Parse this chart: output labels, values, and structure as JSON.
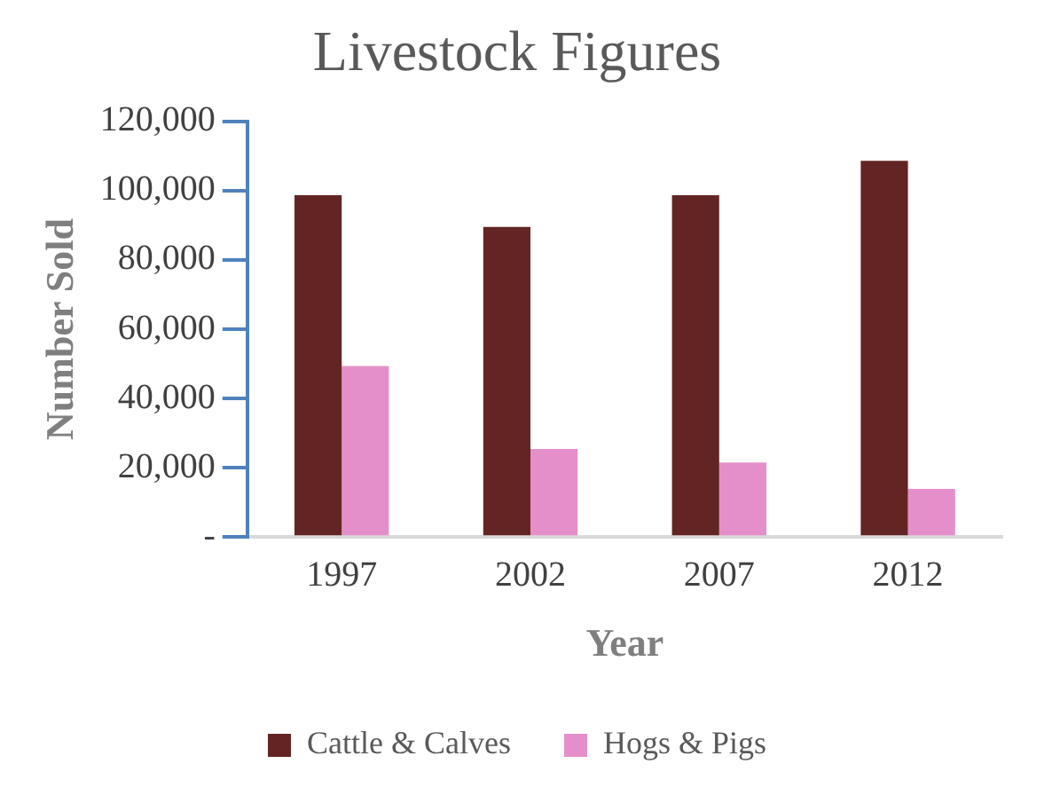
{
  "chart_data": {
    "type": "bar",
    "title": "Livestock Figures",
    "xlabel": "Year",
    "ylabel": "Number Sold",
    "categories": [
      "1997",
      "2002",
      "2007",
      "2012"
    ],
    "series": [
      {
        "name": "Cattle & Calves",
        "color": "#632523",
        "values": [
          98700,
          89500,
          98700,
          108600
        ]
      },
      {
        "name": "Hogs & Pigs",
        "color": "#e48fc9",
        "values": [
          49400,
          25400,
          21500,
          13900
        ]
      }
    ],
    "ylim": [
      0,
      120000
    ],
    "yticks": [
      {
        "value": 0,
        "label": "-"
      },
      {
        "value": 20000,
        "label": "20,000"
      },
      {
        "value": 40000,
        "label": "40,000"
      },
      {
        "value": 60000,
        "label": "60,000"
      },
      {
        "value": 80000,
        "label": "80,000"
      },
      {
        "value": 100000,
        "label": "100,000"
      },
      {
        "value": 120000,
        "label": "120,000"
      }
    ],
    "grid": false,
    "legend": "bottom"
  }
}
